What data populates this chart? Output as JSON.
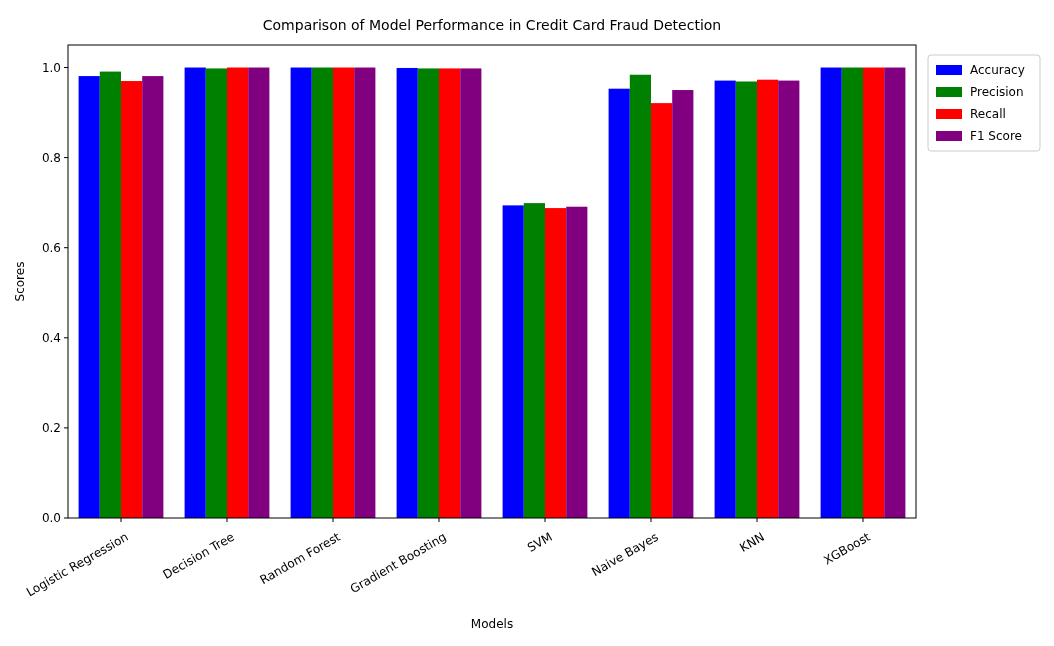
{
  "chart_data": {
    "type": "bar",
    "title": "Comparison of Model Performance in Credit Card Fraud Detection",
    "xlabel": "Models",
    "ylabel": "Scores",
    "categories": [
      "Logistic Regression",
      "Decision Tree",
      "Random Forest",
      "Gradient Boosting",
      "SVM",
      "Naive Bayes",
      "KNN",
      "XGBoost"
    ],
    "series": [
      {
        "name": "Accuracy",
        "color": "#0000ff",
        "values": [
          0.981,
          1.0,
          1.0,
          0.999,
          0.694,
          0.953,
          0.971,
          1.0
        ]
      },
      {
        "name": "Precision",
        "color": "#008000",
        "values": [
          0.991,
          0.998,
          1.0,
          0.998,
          0.699,
          0.984,
          0.969,
          1.0
        ]
      },
      {
        "name": "Recall",
        "color": "#ff0000",
        "values": [
          0.97,
          1.0,
          1.0,
          0.998,
          0.688,
          0.921,
          0.973,
          1.0
        ]
      },
      {
        "name": "F1 Score",
        "color": "#800080",
        "values": [
          0.981,
          1.0,
          1.0,
          0.998,
          0.691,
          0.95,
          0.971,
          1.0
        ]
      }
    ],
    "ylim": [
      0,
      1.05
    ],
    "yticks": [
      {
        "value": 0,
        "label": "0.0"
      },
      {
        "value": 0.2,
        "label": "0.2"
      },
      {
        "value": 0.4,
        "label": "0.4"
      },
      {
        "value": 0.6,
        "label": "0.6"
      },
      {
        "value": 0.8,
        "label": "0.8"
      },
      {
        "value": 1.0,
        "label": "1.0"
      }
    ],
    "grid": false,
    "legend": "right"
  }
}
